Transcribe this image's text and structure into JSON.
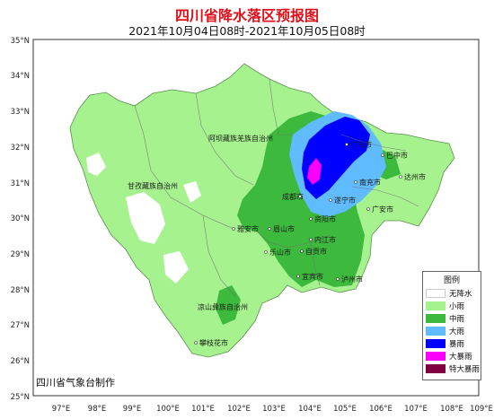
{
  "title": "四川省降水落区预报图",
  "subtitle": "2021年10月04日08时-2021年10月05日08时",
  "credit": "四川省气象台制作",
  "lat_labels": [
    "35°N",
    "34°N",
    "33°N",
    "32°N",
    "31°N",
    "30°N",
    "29°N",
    "28°N",
    "27°N",
    "26°N",
    "25°N"
  ],
  "lon_labels": [
    "97°E",
    "98°E",
    "99°E",
    "100°E",
    "101°E",
    "102°E",
    "103°E",
    "104°E",
    "105°E",
    "106°E",
    "107°E",
    "108°E",
    "109°E"
  ],
  "prefectures": {
    "aba": "阿坝藏族羌族自治州",
    "ganzi": "甘孜藏族自治州",
    "liangshan": "凉山彝族自治州"
  },
  "cities": {
    "guangyuan": "广元市",
    "bazhong": "巴中市",
    "dazhou": "达州市",
    "nanchong": "南充市",
    "suining": "遂宁市",
    "guangan": "广安市",
    "chengdu": "成都市",
    "ziyang": "资阳市",
    "neijiang": "内江市",
    "zigong": "自贡市",
    "yibin": "宜宾市",
    "luzhou": "泸州市",
    "yaan": "雅安市",
    "meishan": "眉山市",
    "leshan": "乐山市",
    "panzhihua": "攀枝花市"
  },
  "legend": {
    "title": "图例",
    "items": [
      {
        "label": "无降水",
        "color": "#ffffff"
      },
      {
        "label": "小雨",
        "color": "#a6f28f"
      },
      {
        "label": "中雨",
        "color": "#3dba3d"
      },
      {
        "label": "大雨",
        "color": "#61bbff"
      },
      {
        "label": "暴雨",
        "color": "#0000fe"
      },
      {
        "label": "大暴雨",
        "color": "#fa00fa"
      },
      {
        "label": "特大暴雨",
        "color": "#800040"
      }
    ]
  }
}
